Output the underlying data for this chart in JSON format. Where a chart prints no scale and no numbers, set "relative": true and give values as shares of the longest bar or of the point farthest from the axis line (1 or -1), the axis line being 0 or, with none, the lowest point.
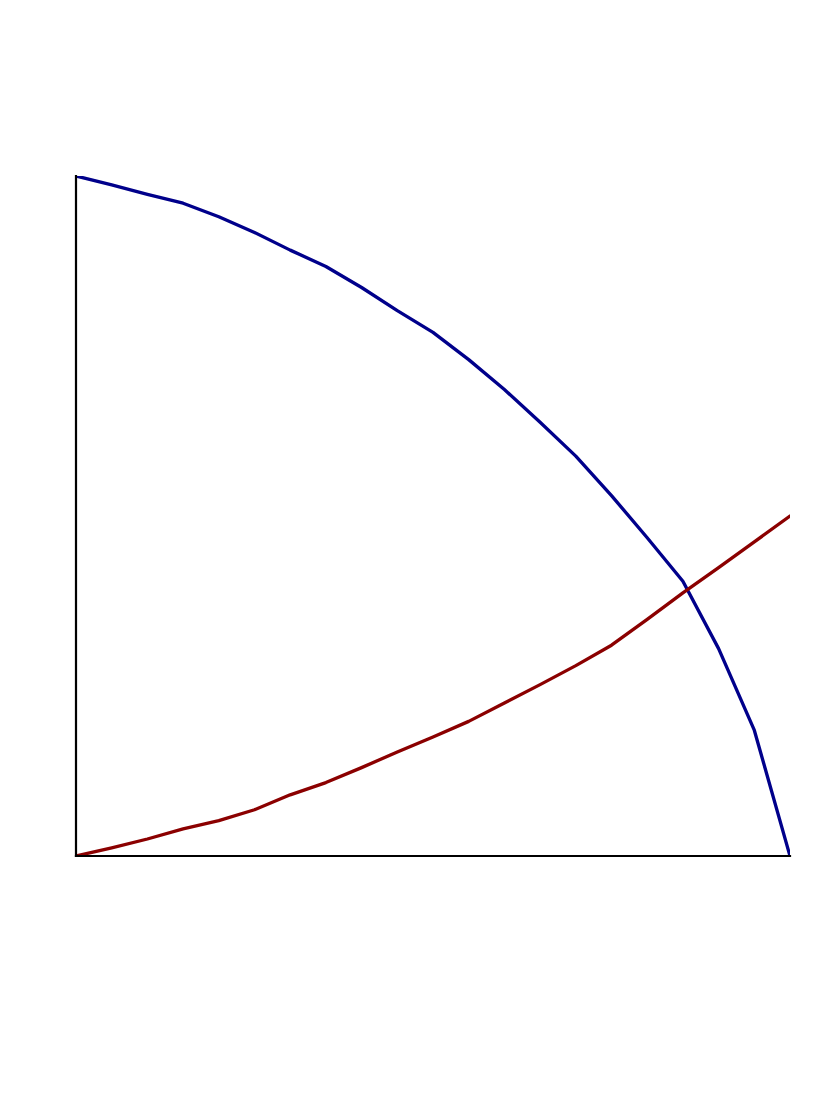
{
  "chart_data": {
    "type": "line",
    "relative": true,
    "categories": [
      null,
      null,
      null,
      null,
      null,
      null,
      null,
      null,
      null,
      null,
      null,
      null,
      null,
      null,
      null,
      null,
      null,
      null,
      null,
      null,
      null
    ],
    "series": [
      {
        "color": "#00008b",
        "values": [
          1,
          0.987,
          0.973,
          0.96,
          0.94,
          0.917,
          0.891,
          0.867,
          0.836,
          0.802,
          0.77,
          0.73,
          0.686,
          0.638,
          0.588,
          0.53,
          0.468,
          0.404,
          0.305,
          0.185,
          0
        ]
      },
      {
        "color": "#8b0000",
        "values": [
          0,
          0.012,
          0.025,
          0.04,
          0.052,
          0.068,
          0.09,
          0.108,
          0.13,
          0.153,
          0.175,
          0.198,
          0.225,
          0.252,
          0.28,
          0.31,
          0.348,
          0.387,
          0.424,
          0.462,
          0.5
        ]
      }
    ]
  }
}
